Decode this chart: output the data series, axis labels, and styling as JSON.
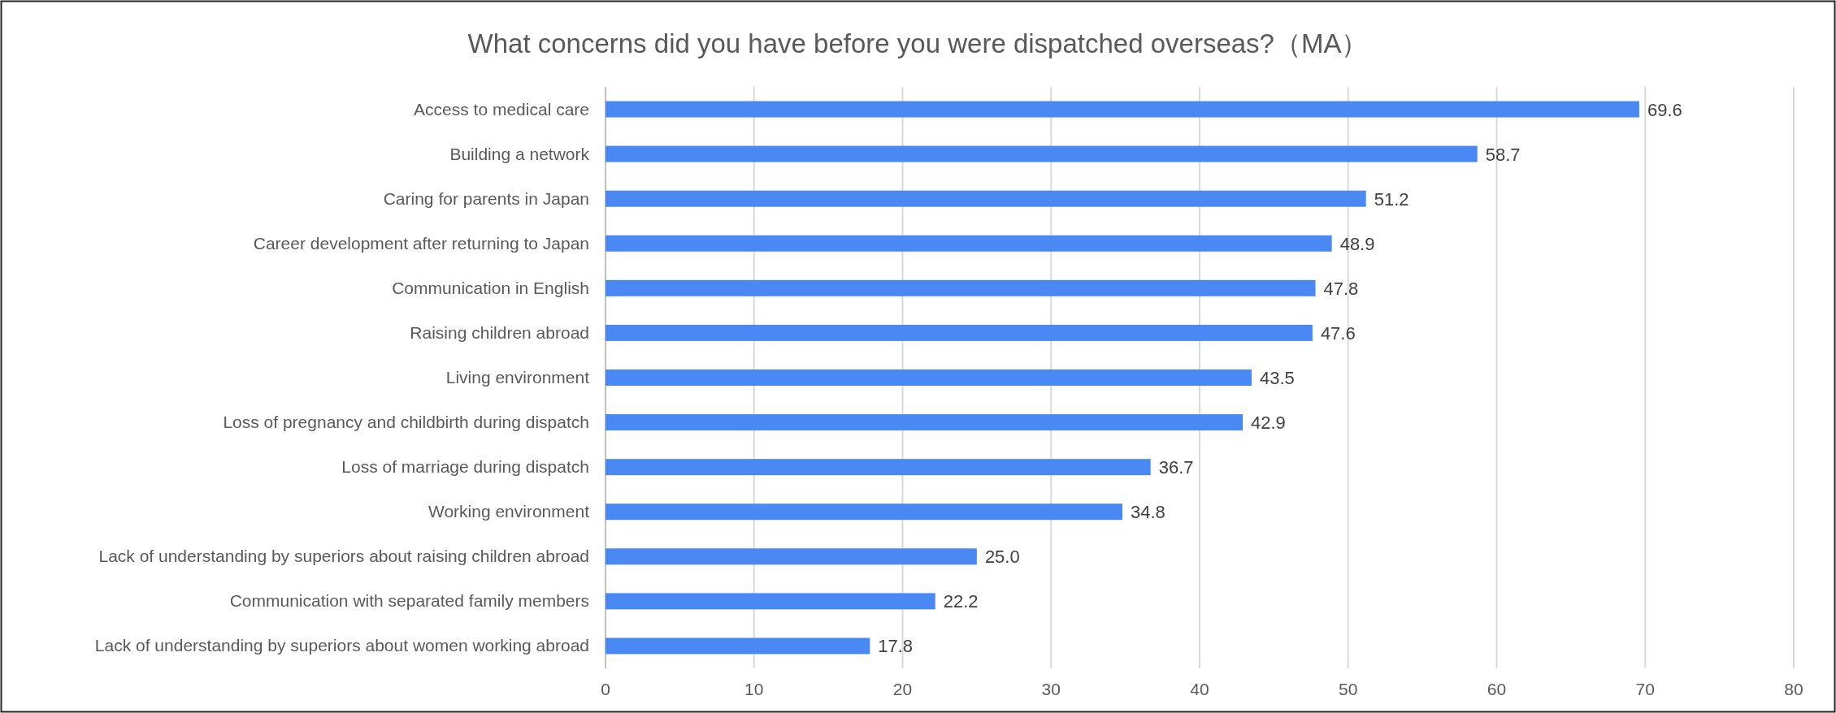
{
  "chart_data": {
    "type": "bar",
    "orientation": "horizontal",
    "title": "What concerns did you have before you were dispatched overseas?（MA）",
    "categories": [
      "Access to medical care",
      "Building a network",
      "Caring for parents in Japan",
      "Career development after returning to Japan",
      "Communication in English",
      "Raising children abroad",
      "Living environment ",
      "Loss of pregnancy and childbirth during dispatch",
      "Loss of marriage during dispatch",
      "Working environment",
      "Lack of understanding by superiors about raising children abroad",
      "Communication with separated family members",
      "Lack of understanding by superiors about women working abroad"
    ],
    "values": [
      69.6,
      58.7,
      51.2,
      48.9,
      47.8,
      47.6,
      43.5,
      42.9,
      36.7,
      34.8,
      25.0,
      22.2,
      17.8
    ],
    "value_labels": [
      "69.6",
      "58.7",
      "51.2",
      "48.9",
      "47.8",
      "47.6",
      "43.5",
      "42.9",
      "36.7",
      "34.8",
      "25.0",
      "22.2",
      "17.8"
    ],
    "color": "#4a89f3",
    "xlim": [
      0,
      80
    ],
    "xticks": [
      0,
      10,
      20,
      30,
      40,
      50,
      60,
      70,
      80
    ],
    "grid": "x"
  }
}
